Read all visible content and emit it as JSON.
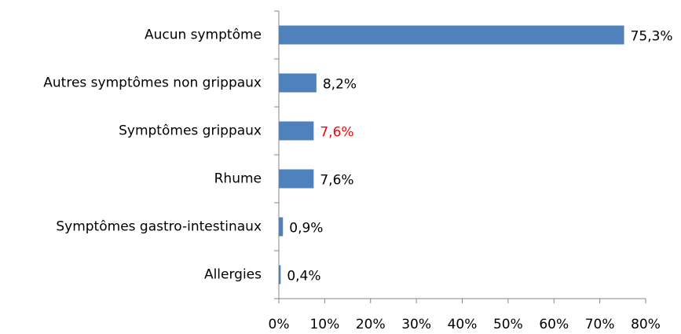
{
  "chart_data": {
    "type": "barh",
    "categories": [
      "Aucun symptôme",
      "Autres symptômes non grippaux",
      "Symptômes grippaux",
      "Rhume",
      "Symptômes gastro-intestinaux",
      "Allergies"
    ],
    "values": [
      75.3,
      8.2,
      7.6,
      7.6,
      0.9,
      0.4
    ],
    "value_labels": [
      "75,3%",
      "8,2%",
      "7,6%",
      "7,6%",
      "0,9%",
      "0,4%"
    ],
    "value_label_colors": [
      "#000000",
      "#000000",
      "#ff0000",
      "#000000",
      "#000000",
      "#000000"
    ],
    "color": "#4f81bd",
    "xlim": [
      0,
      80
    ],
    "xticks": [
      {
        "value": 0,
        "label": "0%"
      },
      {
        "value": 10,
        "label": "10%"
      },
      {
        "value": 20,
        "label": "20%"
      },
      {
        "value": 30,
        "label": "30%"
      },
      {
        "value": 40,
        "label": "40%"
      },
      {
        "value": 50,
        "label": "50%"
      },
      {
        "value": 60,
        "label": "60%"
      },
      {
        "value": 70,
        "label": "70%"
      },
      {
        "value": 80,
        "label": "80%"
      }
    ],
    "grid": false
  }
}
